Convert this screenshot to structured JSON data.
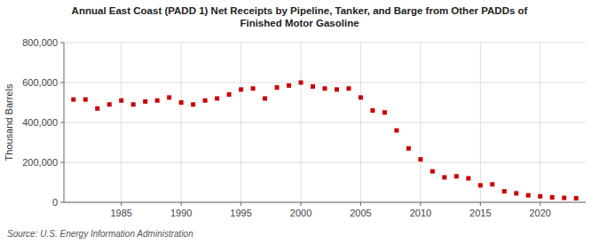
{
  "chart_data": {
    "type": "scatter",
    "title": "Annual East Coast (PADD 1) Net Receipts by Pipeline, Tanker, and Barge from Other PADDs of\nFinished Motor Gasoline",
    "ylabel": "Thousand Barrels",
    "source": "Source: U.S. Energy Information Administration",
    "x": [
      1981,
      1982,
      1983,
      1984,
      1985,
      1986,
      1987,
      1988,
      1989,
      1990,
      1991,
      1992,
      1993,
      1994,
      1995,
      1996,
      1997,
      1998,
      1999,
      2000,
      2001,
      2002,
      2003,
      2004,
      2005,
      2006,
      2007,
      2008,
      2009,
      2010,
      2011,
      2012,
      2013,
      2014,
      2015,
      2016,
      2017,
      2018,
      2019,
      2020,
      2021,
      2022,
      2023
    ],
    "values": [
      515000,
      515000,
      470000,
      490000,
      510000,
      490000,
      505000,
      510000,
      525000,
      500000,
      490000,
      510000,
      520000,
      540000,
      565000,
      570000,
      520000,
      575000,
      585000,
      600000,
      580000,
      570000,
      565000,
      570000,
      525000,
      460000,
      450000,
      360000,
      270000,
      215000,
      155000,
      125000,
      130000,
      120000,
      85000,
      90000,
      55000,
      45000,
      35000,
      30000,
      25000,
      22000,
      20000
    ],
    "color": "#cc0000",
    "marker": "square",
    "xlim": [
      1980.2,
      2023.8
    ],
    "xticks": [
      1985,
      1990,
      1995,
      2000,
      2005,
      2010,
      2015,
      2020
    ],
    "ylim": [
      0,
      800000
    ],
    "yticks": [
      0,
      {
        "value": 200000,
        "label": "200,000"
      },
      {
        "value": 400000,
        "label": "400,000"
      },
      {
        "value": 600000,
        "label": "600,000"
      },
      {
        "value": 800000,
        "label": "800,000"
      }
    ],
    "grid": true
  }
}
